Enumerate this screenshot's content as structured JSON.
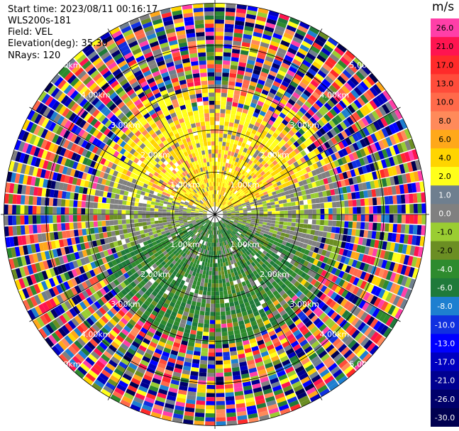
{
  "header": {
    "start_time": "Start time: 2023/08/11 00:16:17",
    "instrument": "WLS200s-181",
    "field": "Field: VEL",
    "elevation": "Elevation(deg): 35.30",
    "nrays": "NRays: 120"
  },
  "colorbar": {
    "unit": "m/s",
    "levels": [
      {
        "label": "26.0",
        "color": "#ff3fa8"
      },
      {
        "label": "21.0",
        "color": "#ff1450"
      },
      {
        "label": "17.0",
        "color": "#ff2a2a"
      },
      {
        "label": "13.0",
        "color": "#ff4c3a"
      },
      {
        "label": "10.0",
        "color": "#ff6a4a"
      },
      {
        "label": "8.0",
        "color": "#ff8a5a"
      },
      {
        "label": "6.0",
        "color": "#ffa81a"
      },
      {
        "label": "4.0",
        "color": "#ffd400"
      },
      {
        "label": "2.0",
        "color": "#ffff1a"
      },
      {
        "label": "1.0",
        "color": "#6f7f8f"
      },
      {
        "label": "0.0",
        "color": "#808080"
      },
      {
        "label": "-1.0",
        "color": "#9acd32"
      },
      {
        "label": "-2.0",
        "color": "#6b8e23"
      },
      {
        "label": "-4.0",
        "color": "#2e8b2e"
      },
      {
        "label": "-6.0",
        "color": "#1f7a3a"
      },
      {
        "label": "-8.0",
        "color": "#1e7fd0"
      },
      {
        "label": "-10.0",
        "color": "#1030e0"
      },
      {
        "label": "-13.0",
        "color": "#0000ff"
      },
      {
        "label": "-17.0",
        "color": "#0000c0"
      },
      {
        "label": "-21.0",
        "color": "#000090"
      },
      {
        "label": "-26.0",
        "color": "#00006a"
      },
      {
        "label": "-30.0",
        "color": "#000050"
      }
    ]
  },
  "chart_data": {
    "type": "heatmap",
    "projection": "polar PPI",
    "field": "VEL",
    "units": "m/s",
    "nrays": 120,
    "range_rings_km": [
      1.0,
      2.0,
      3.0,
      4.0,
      5.0
    ],
    "range_ring_labels": [
      "1.00km",
      "2.00km",
      "3.00km",
      "4.00km",
      "5.00km"
    ],
    "spoke_angles_deg": [
      0,
      30,
      60,
      90,
      120,
      150,
      180,
      210,
      240,
      270,
      300,
      330
    ],
    "max_range_km": 5.0,
    "near_field_pattern": {
      "north": "2.0 to 6.0 (yellow/orange, receding)",
      "south": "-2.0 to -6.0 (green, approaching)",
      "east_west": "0.0 to -1.0 (gray)",
      "beyond_3km": "noisy, all colors"
    },
    "colorscale_vmin": -30.0,
    "colorscale_vmax": 26.0
  }
}
